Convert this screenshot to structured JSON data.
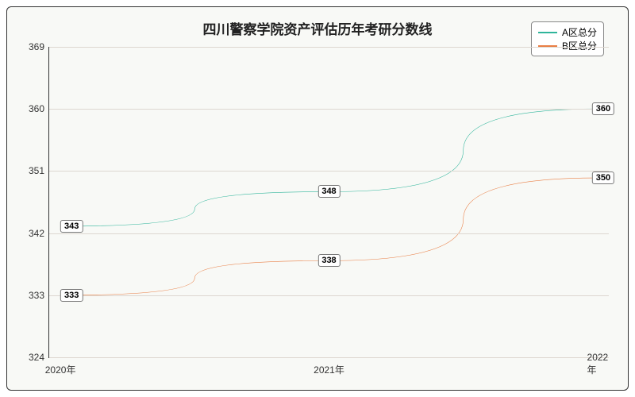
{
  "chart": {
    "type": "line",
    "title": "四川警察学院资产评估历年考研分数线",
    "title_fontsize": 17,
    "background_color": "#f8f9f6",
    "border_color": "#333333",
    "grid_color": "#ddd7d0",
    "x_categories": [
      "2020年",
      "2021年",
      "2022年"
    ],
    "x_positions_pct": [
      2,
      50,
      98
    ],
    "ylim": [
      324,
      369
    ],
    "yticks": [
      324,
      333,
      342,
      351,
      360,
      369
    ],
    "label_fontsize": 12,
    "series": [
      {
        "name": "A区总分",
        "color": "#2fb59b",
        "values": [
          343,
          348,
          360
        ],
        "line_width": 2
      },
      {
        "name": "B区总分",
        "color": "#e97e44",
        "values": [
          333,
          338,
          350
        ],
        "line_width": 2
      }
    ],
    "data_label_bg": "#ffffff",
    "data_label_border": "#777777",
    "legend": {
      "bg": "#ffffff",
      "border": "#888888",
      "fontsize": 12
    }
  }
}
